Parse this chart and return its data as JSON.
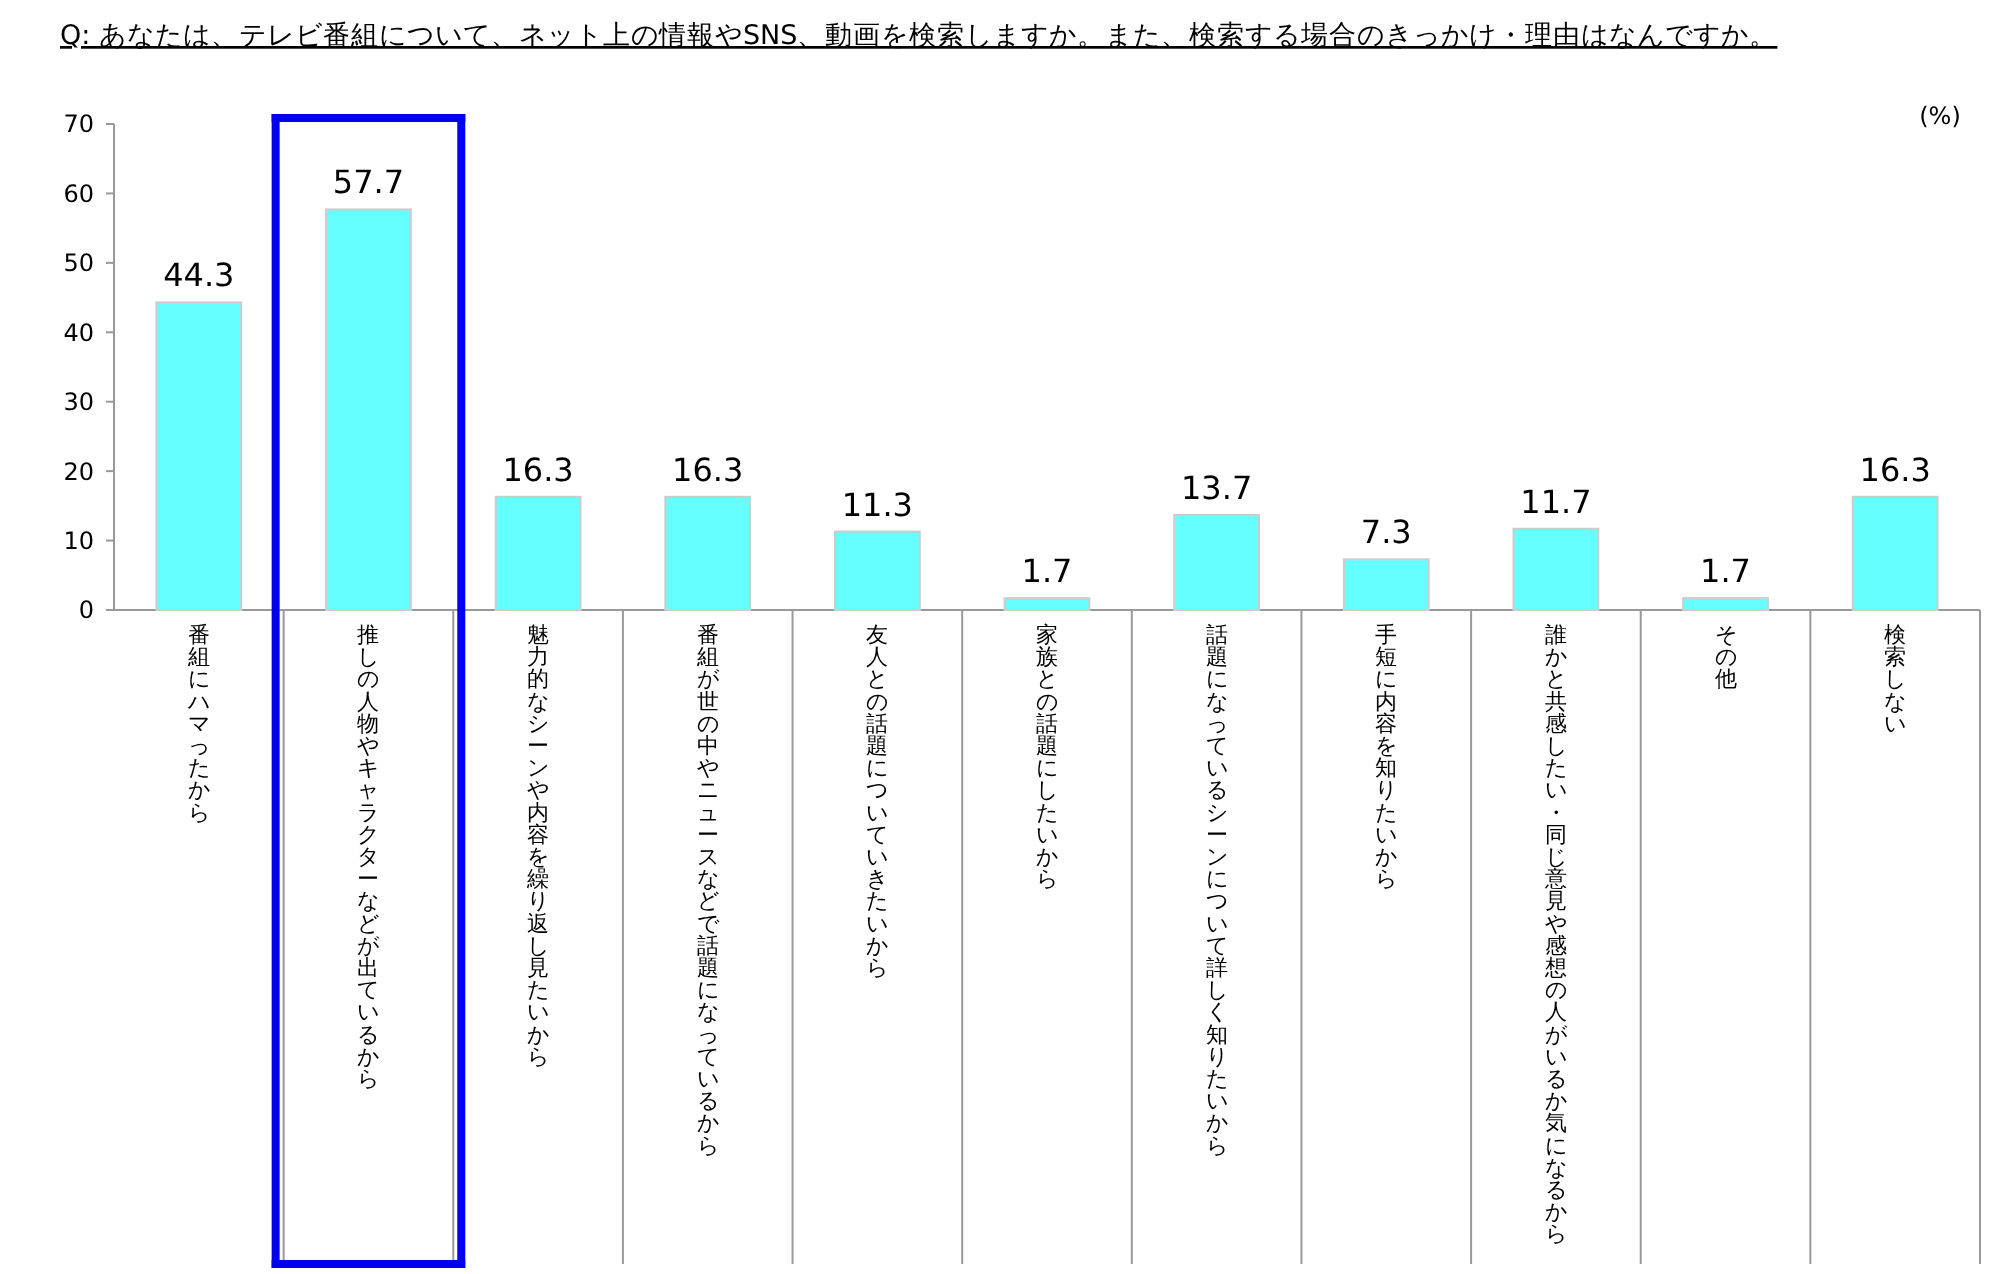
{
  "chart_data": {
    "type": "bar",
    "title": "Q:  あなたは、テレビ番組について、ネット上の情報やSNS、動画を検索しますか。また、検索する場合のきっかけ・理由はなんですか。",
    "ylabel": "(%)",
    "categories": [
      "番組にハマったから",
      "推しの人物やキャラクターなどが出ているから",
      "魅力的なシーンや内容を繰り返し見たいから",
      "番組が世の中やニュースなどで話題になっているから",
      "友人との話題についていきたいから",
      "家族との話題にしたいから",
      "話題になっているシーンについて詳しく知りたいから",
      "手短に内容を知りたいから",
      "誰かと共感したい・同じ意見や感想の人がいるか気になるから",
      "その他",
      "検索しない"
    ],
    "values": [
      44.3,
      57.7,
      16.3,
      16.3,
      11.3,
      1.7,
      13.7,
      7.3,
      11.7,
      1.7,
      16.3
    ],
    "color": "#66ffff",
    "ylim": [
      0,
      70
    ],
    "yticks": [
      0,
      10,
      20,
      30,
      40,
      50,
      60,
      70
    ],
    "data_labels": true,
    "grid": false
  }
}
